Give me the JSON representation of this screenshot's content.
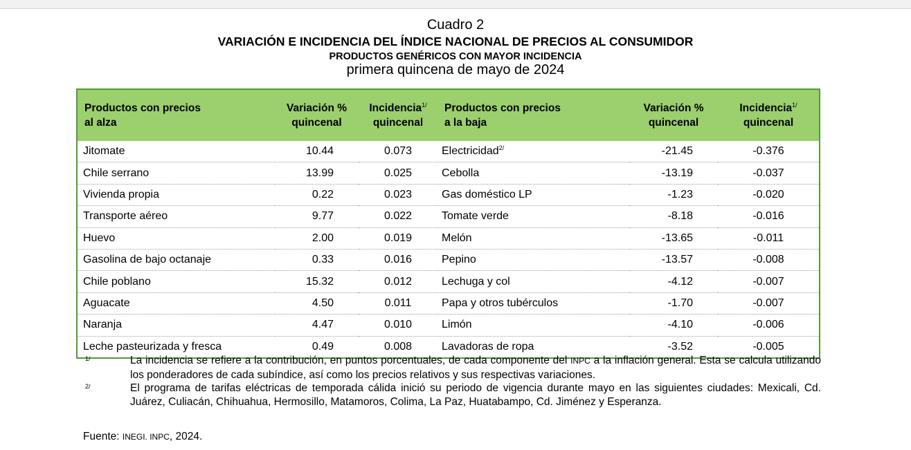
{
  "title": {
    "cuadro": "Cuadro 2",
    "main": "VARIACIÓN E INCIDENCIA DEL ÍNDICE NACIONAL DE PRECIOS AL CONSUMIDOR",
    "sub": "PRODUCTOS GENÉRICOS CON MAYOR INCIDENCIA",
    "period": "primera quincena de mayo de 2024"
  },
  "headers": {
    "up_products_l1": "Productos con precios",
    "up_products_l2": "al alza",
    "variacion_l1": "Variación %",
    "variacion_l2": "quincenal",
    "incidencia_l1": "Incidencia",
    "incidencia_sup": "1/",
    "incidencia_l2": "quincenal",
    "down_products_l1": "Productos con precios",
    "down_products_l2": "a la baja"
  },
  "rows_up": [
    {
      "name": "Jitomate",
      "var": "10.44",
      "inc": "0.073"
    },
    {
      "name": "Chile serrano",
      "var": "13.99",
      "inc": "0.025"
    },
    {
      "name": "Vivienda propia",
      "var": "0.22",
      "inc": "0.023"
    },
    {
      "name": "Transporte aéreo",
      "var": "9.77",
      "inc": "0.022"
    },
    {
      "name": "Huevo",
      "var": "2.00",
      "inc": "0.019"
    },
    {
      "name": "Gasolina de bajo octanaje",
      "var": "0.33",
      "inc": "0.016"
    },
    {
      "name": "Chile poblano",
      "var": "15.32",
      "inc": "0.012"
    },
    {
      "name": "Aguacate",
      "var": "4.50",
      "inc": "0.011"
    },
    {
      "name": "Naranja",
      "var": "4.47",
      "inc": "0.010"
    },
    {
      "name": "Leche pasteurizada y fresca",
      "var": "0.49",
      "inc": "0.008"
    }
  ],
  "rows_down": [
    {
      "name": "Electricidad",
      "sup": "2/",
      "var": "-21.45",
      "inc": "-0.376"
    },
    {
      "name": "Cebolla",
      "var": "-13.19",
      "inc": "-0.037"
    },
    {
      "name": "Gas doméstico LP",
      "var": "-1.23",
      "inc": "-0.020"
    },
    {
      "name": "Tomate verde",
      "var": "-8.18",
      "inc": "-0.016"
    },
    {
      "name": "Melón",
      "var": "-13.65",
      "inc": "-0.011"
    },
    {
      "name": "Pepino",
      "var": "-13.57",
      "inc": "-0.008"
    },
    {
      "name": "Lechuga y col",
      "var": "-4.12",
      "inc": "-0.007"
    },
    {
      "name": "Papa y otros tubérculos",
      "var": "-1.70",
      "inc": "-0.007"
    },
    {
      "name": "Limón",
      "var": "-4.10",
      "inc": "-0.006"
    },
    {
      "name": "Lavadoras de ropa",
      "var": "-3.52",
      "inc": "-0.005"
    }
  ],
  "notes": {
    "n1_mark": "1/",
    "n1_text_a": "La incidencia se refiere a la contribución, en puntos porcentuales, de cada componente del ",
    "n1_abbr": "INPC",
    "n1_text_b": " a la inflación general. Esta se calcula utilizando los ponderadores de cada subíndice, así como los precios relativos y sus respectivas variaciones.",
    "n2_mark": "2/",
    "n2_text": "El programa de tarifas eléctricas de temporada cálida inició su periodo de vigencia durante mayo en las siguientes ciudades: Mexicali, Cd. Juárez, Culiacán, Chihuahua, Hermosillo, Matamoros, Colima, La Paz, Huatabampo, Cd. Jiménez y Esperanza.",
    "fuente_label": "Fuente: ",
    "fuente_abbr": "INEGI. INPC",
    "fuente_year": ", 2024."
  }
}
